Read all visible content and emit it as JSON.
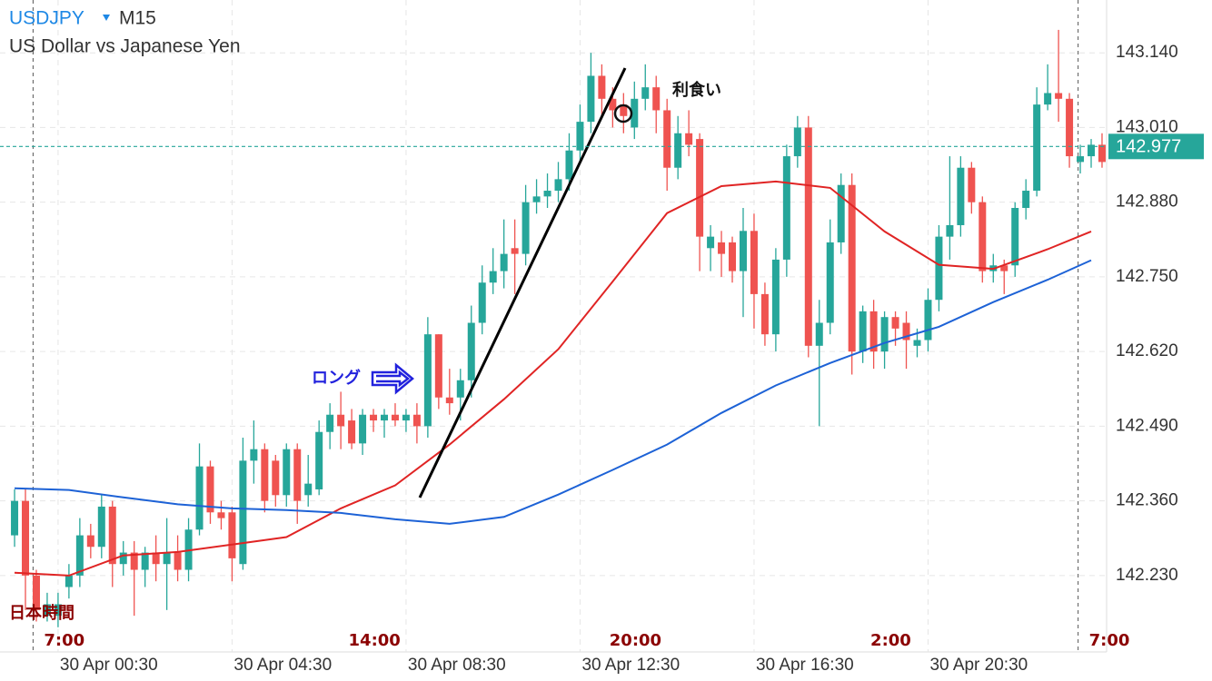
{
  "chart_data": {
    "type": "candlestick",
    "symbol": "USDJPY",
    "timeframe": "M15",
    "title": "US Dollar vs Japanese Yen",
    "up_color": "#26a69a",
    "down_color": "#ef5350",
    "open": [
      142.3,
      142.36,
      142.23,
      142.16,
      142.16,
      142.21,
      142.23,
      142.3,
      142.28,
      142.35,
      142.25,
      142.27,
      142.24,
      142.27,
      142.25,
      142.27,
      142.24,
      142.31,
      142.42,
      142.34,
      142.34,
      142.25,
      142.43,
      142.45,
      142.43,
      142.37,
      142.45,
      142.37,
      142.38,
      142.48,
      142.51,
      142.5,
      142.46,
      142.51,
      142.5,
      142.51,
      142.5,
      142.51,
      142.49,
      142.65,
      142.54,
      142.54,
      142.57,
      142.67,
      142.74,
      142.76,
      142.8,
      142.79,
      142.88,
      142.89,
      142.9,
      142.92,
      142.97,
      143.02,
      143.1,
      143.06,
      143.05,
      143.01,
      143.06,
      143.08,
      143.04,
      142.94,
      143.0,
      142.99,
      142.8,
      142.81,
      142.81,
      142.76,
      142.83,
      142.72,
      142.65,
      142.78,
      142.96,
      143.01,
      142.63,
      142.67,
      142.81,
      142.91,
      142.62,
      142.69,
      142.62,
      142.68,
      142.67,
      142.63,
      142.64,
      142.71,
      142.82,
      142.84,
      142.94,
      142.88,
      142.76,
      142.77,
      142.77,
      142.87,
      142.9,
      143.05,
      143.07,
      143.06,
      142.95,
      142.96,
      142.98
    ],
    "high": [
      142.38,
      142.38,
      142.24,
      142.2,
      142.2,
      142.25,
      142.33,
      142.32,
      142.37,
      142.36,
      142.29,
      142.29,
      142.28,
      142.3,
      142.33,
      142.3,
      142.33,
      142.46,
      142.43,
      142.36,
      142.35,
      142.47,
      142.5,
      142.46,
      142.44,
      142.46,
      142.46,
      142.44,
      142.5,
      142.53,
      142.55,
      142.52,
      142.52,
      142.52,
      142.52,
      142.53,
      142.52,
      142.53,
      142.68,
      142.65,
      142.59,
      142.59,
      142.7,
      142.77,
      142.8,
      142.85,
      142.85,
      142.91,
      142.92,
      142.93,
      142.95,
      143.0,
      143.05,
      143.14,
      143.12,
      143.08,
      143.07,
      143.09,
      143.12,
      143.1,
      143.06,
      143.03,
      143.04,
      143.0,
      142.84,
      142.83,
      142.82,
      142.87,
      142.86,
      142.74,
      142.8,
      142.98,
      143.03,
      143.03,
      142.71,
      142.85,
      142.93,
      142.93,
      142.7,
      142.71,
      142.69,
      142.69,
      142.69,
      142.66,
      142.73,
      142.84,
      142.96,
      142.96,
      142.95,
      142.89,
      142.79,
      142.78,
      142.88,
      142.92,
      143.08,
      143.12,
      143.18,
      143.07,
      142.98,
      142.99,
      143.0
    ],
    "low": [
      142.28,
      142.17,
      142.15,
      142.15,
      142.14,
      142.19,
      142.21,
      142.26,
      142.26,
      142.21,
      142.23,
      142.16,
      142.21,
      142.22,
      142.17,
      142.22,
      142.22,
      142.3,
      142.32,
      142.31,
      142.22,
      142.24,
      142.39,
      142.34,
      142.35,
      142.35,
      142.32,
      142.35,
      142.37,
      142.45,
      142.45,
      142.45,
      142.44,
      142.48,
      142.47,
      142.49,
      142.48,
      142.46,
      142.47,
      142.52,
      142.51,
      142.5,
      142.54,
      142.65,
      142.72,
      142.73,
      142.72,
      142.77,
      142.86,
      142.87,
      142.88,
      142.9,
      142.95,
      143.0,
      143.03,
      143.01,
      143.0,
      142.99,
      143.04,
      143.0,
      142.9,
      142.92,
      142.96,
      142.76,
      142.76,
      142.75,
      142.74,
      142.68,
      142.66,
      142.63,
      142.62,
      142.75,
      142.94,
      142.61,
      142.49,
      142.65,
      142.79,
      142.58,
      142.6,
      142.59,
      142.59,
      142.63,
      142.59,
      142.61,
      142.62,
      142.69,
      142.78,
      142.82,
      142.86,
      142.74,
      142.74,
      142.72,
      142.75,
      142.85,
      142.89,
      143.04,
      143.02,
      142.94,
      142.93,
      142.94,
      142.94
    ],
    "close": [
      142.36,
      142.23,
      142.17,
      142.18,
      142.18,
      142.23,
      142.3,
      142.28,
      142.35,
      142.25,
      142.27,
      142.24,
      142.27,
      142.25,
      142.27,
      142.24,
      142.31,
      142.42,
      142.34,
      142.33,
      142.26,
      142.43,
      142.45,
      142.36,
      142.37,
      142.45,
      142.36,
      142.39,
      142.48,
      142.51,
      142.49,
      142.46,
      142.51,
      142.5,
      142.51,
      142.5,
      142.51,
      142.49,
      142.65,
      142.54,
      142.53,
      142.57,
      142.67,
      142.74,
      142.76,
      142.79,
      142.79,
      142.88,
      142.89,
      142.9,
      142.92,
      142.97,
      143.02,
      143.1,
      143.06,
      143.04,
      143.03,
      143.06,
      143.08,
      143.04,
      142.94,
      143.0,
      142.98,
      142.82,
      142.82,
      142.79,
      142.76,
      142.83,
      142.72,
      142.65,
      142.78,
      142.96,
      143.01,
      142.63,
      142.67,
      142.81,
      142.91,
      142.62,
      142.69,
      142.62,
      142.68,
      142.66,
      142.64,
      142.64,
      142.71,
      142.82,
      142.84,
      142.94,
      142.88,
      142.76,
      142.77,
      142.76,
      142.87,
      142.9,
      143.05,
      143.07,
      143.06,
      142.96,
      142.96,
      142.98,
      142.95
    ],
    "lines": [
      {
        "color": "#e02424",
        "x": [
          0,
          5,
          10,
          15,
          20,
          25,
          30,
          35,
          40,
          45,
          50,
          55,
          60,
          65,
          70,
          75,
          80,
          85,
          90,
          95,
          99
        ],
        "values": [
          142.235,
          142.23,
          142.265,
          142.271,
          142.284,
          142.297,
          142.347,
          142.387,
          142.458,
          142.537,
          142.624,
          142.742,
          142.861,
          142.908,
          142.916,
          142.905,
          142.829,
          142.771,
          142.764,
          142.798,
          142.829
        ]
      },
      {
        "color": "#1d62d6",
        "x": [
          0,
          5,
          10,
          15,
          20,
          25,
          30,
          35,
          40,
          45,
          50,
          55,
          60,
          65,
          70,
          75,
          80,
          85,
          90,
          95,
          99
        ],
        "values": [
          142.382,
          142.379,
          142.366,
          142.354,
          142.347,
          142.344,
          142.339,
          142.328,
          142.32,
          142.332,
          142.371,
          142.414,
          142.458,
          142.513,
          142.561,
          142.6,
          142.635,
          142.663,
          142.706,
          142.745,
          142.779
        ]
      }
    ],
    "current_price": 142.977,
    "current_color": "#26a69a",
    "ylim": [
      142.097,
      143.232
    ],
    "yticks": [
      {
        "value": 143.14,
        "label": "143.140"
      },
      {
        "value": 143.01,
        "label": "143.010"
      },
      {
        "value": 142.88,
        "label": "142.880"
      },
      {
        "value": 142.75,
        "label": "142.750"
      },
      {
        "value": 142.62,
        "label": "142.620"
      },
      {
        "value": 142.49,
        "label": "142.490"
      },
      {
        "value": 142.36,
        "label": "142.360"
      },
      {
        "value": 142.23,
        "label": "142.230"
      }
    ],
    "xlim": [
      -1.34,
      100.42
    ],
    "xticks": [
      {
        "value": 4,
        "label": "30 Apr 00:30"
      },
      {
        "value": 20,
        "label": "30 Apr 04:30"
      },
      {
        "value": 36,
        "label": "30 Apr 08:30"
      },
      {
        "value": 52,
        "label": "30 Apr 12:30"
      },
      {
        "value": 68,
        "label": "30 Apr 16:30"
      },
      {
        "value": 84,
        "label": "30 Apr 20:30"
      }
    ],
    "grid": true,
    "local_time_label": "日本時間",
    "local_xticks": [
      {
        "value": 1.7,
        "label": "7:00"
      },
      {
        "value": 29.7,
        "label": "14:00"
      },
      {
        "value": 53.7,
        "label": "20:00"
      },
      {
        "value": 77.7,
        "label": "2:00"
      },
      {
        "value": 97.8,
        "label": "7:00"
      }
    ],
    "annotations": [
      "利食い",
      "ロング"
    ]
  }
}
